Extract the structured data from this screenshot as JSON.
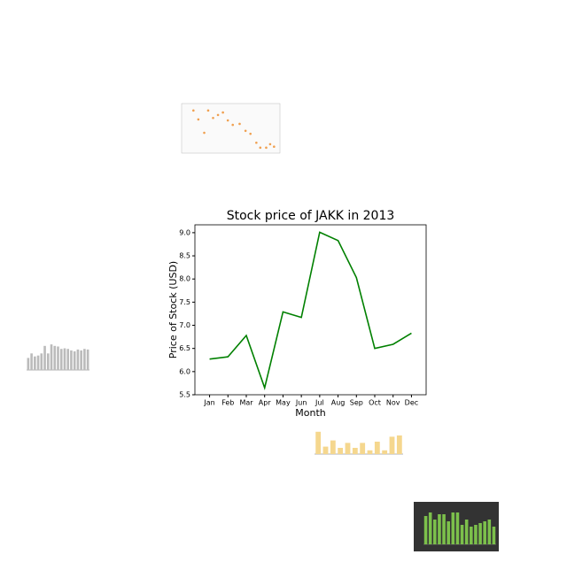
{
  "chart_data": [
    {
      "type": "line",
      "title": "Stock price of JAKK in 2013",
      "x_label": "Month",
      "y_label": "Price of Stock (USD)",
      "categories": [
        "Jan",
        "Feb",
        "Mar",
        "Apr",
        "May",
        "Jun",
        "Jul",
        "Aug",
        "Sep",
        "Oct",
        "Nov",
        "Dec"
      ],
      "values": [
        6.27,
        6.32,
        6.78,
        5.65,
        7.29,
        7.17,
        9.01,
        8.83,
        8.03,
        6.5,
        6.59,
        6.83
      ],
      "color": "#008000",
      "ylim": [
        5.5,
        9.17
      ],
      "yticks": [
        5.5,
        {
          "value": 6,
          "label": "6.0"
        },
        6.5,
        {
          "value": 7,
          "label": "7.0"
        },
        7.5,
        {
          "value": 8,
          "label": "8.0"
        },
        8.5,
        {
          "value": 9,
          "label": "9.0"
        }
      ]
    },
    {
      "type": "scatter",
      "color": "#f0a050",
      "xlim": [
        0,
        100
      ],
      "ylim": [
        0,
        100
      ],
      "x": [
        12,
        17,
        23,
        27,
        32,
        37,
        42,
        47,
        52,
        59,
        65,
        70,
        76,
        80,
        86,
        90,
        94
      ],
      "values": [
        86,
        68,
        41,
        86,
        71,
        77,
        82,
        66,
        57,
        59,
        45,
        39,
        21,
        11,
        11,
        18,
        13
      ]
    },
    {
      "type": "bar",
      "color": "#bbbbbb",
      "ylim": [
        0,
        100
      ],
      "values": [
        40,
        55,
        45,
        48,
        55,
        80,
        55,
        85,
        80,
        78,
        70,
        72,
        70,
        65,
        62,
        68,
        65,
        70,
        68
      ]
    },
    {
      "type": "bar",
      "color": "#f5d78e",
      "ylim": [
        0,
        100
      ],
      "values": [
        90,
        30,
        55,
        25,
        45,
        25,
        45,
        15,
        50,
        15,
        70,
        75
      ]
    },
    {
      "type": "bar",
      "color": "#7cc04b",
      "background": "#333333",
      "ylim": [
        0,
        100
      ],
      "values": [
        80,
        90,
        70,
        85,
        85,
        65,
        90,
        90,
        55,
        70,
        50,
        55,
        60,
        65,
        70,
        50
      ]
    }
  ]
}
